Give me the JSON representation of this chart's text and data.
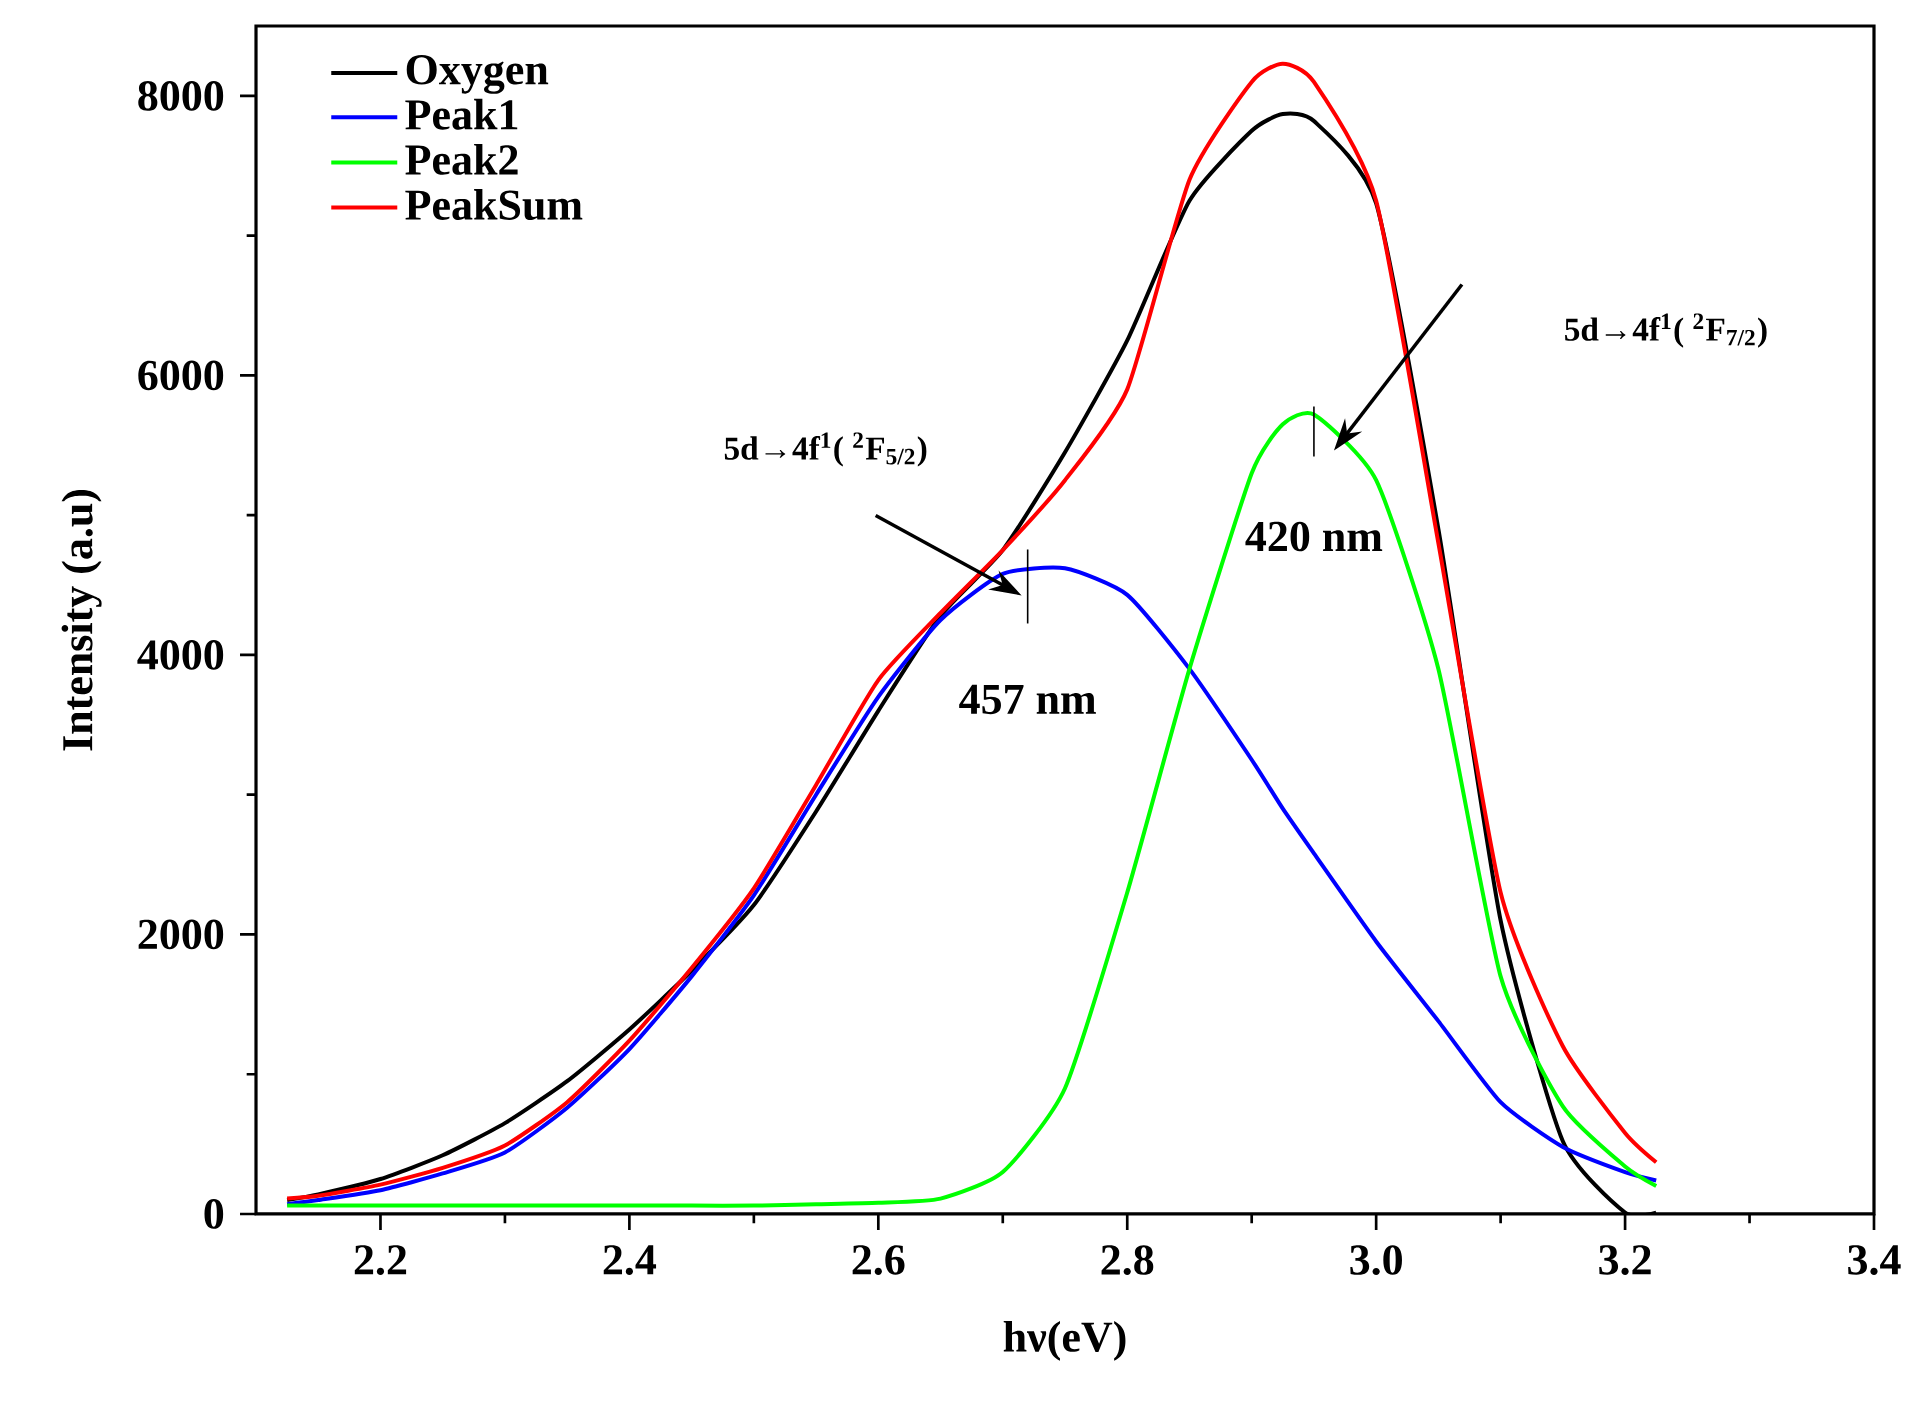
{
  "chart_data": {
    "type": "line",
    "xlabel": "hν(eV)",
    "ylabel": "Intensity (a.u)",
    "x": [
      2.125,
      2.15,
      2.2,
      2.25,
      2.3,
      2.35,
      2.4,
      2.45,
      2.5,
      2.55,
      2.6,
      2.65,
      2.7,
      2.75,
      2.8,
      2.85,
      2.9,
      2.925,
      2.95,
      3.0,
      3.05,
      3.1,
      3.15,
      3.2,
      3.225
    ],
    "series": [
      {
        "name": "Oxygen",
        "color": "#000000",
        "values": [
          100,
          140,
          250,
          420,
          650,
          950,
          1320,
          1740,
          2210,
          2880,
          3600,
          4280,
          4750,
          5450,
          6250,
          7250,
          7750,
          7870,
          7820,
          7230,
          4900,
          2100,
          520,
          10,
          10
        ]
      },
      {
        "name": "Peak1",
        "color": "#0000ff",
        "values": [
          70,
          100,
          170,
          290,
          440,
          760,
          1180,
          1700,
          2280,
          3000,
          3700,
          4250,
          4580,
          4620,
          4430,
          3900,
          3250,
          2900,
          2580,
          1950,
          1380,
          800,
          480,
          300,
          240
        ]
      },
      {
        "name": "Peak2",
        "color": "#00ff00",
        "values": [
          60,
          60,
          60,
          60,
          60,
          60,
          60,
          60,
          60,
          70,
          80,
          110,
          300,
          900,
          2300,
          3900,
          5300,
          5650,
          5720,
          5250,
          3900,
          1700,
          770,
          340,
          200
        ]
      },
      {
        "name": "PeakSum",
        "color": "#ff0000",
        "values": [
          110,
          130,
          210,
          330,
          490,
          800,
          1240,
          1760,
          2330,
          3070,
          3820,
          4300,
          4750,
          5250,
          5900,
          7400,
          8100,
          8230,
          8100,
          7250,
          4800,
          2300,
          1200,
          580,
          370
        ]
      }
    ],
    "xlim": [
      2.1,
      3.4
    ],
    "ylim": [
      0,
      8500
    ],
    "xticks": [
      {
        "value": 2.2,
        "label": "2.2"
      },
      {
        "value": 2.4,
        "label": "2.4"
      },
      {
        "value": 2.6,
        "label": "2.6"
      },
      {
        "value": 2.8,
        "label": "2.8"
      },
      {
        "value": 3.0,
        "label": "3.0"
      },
      {
        "value": 3.2,
        "label": "3.2"
      },
      {
        "value": 3.4,
        "label": "3.4"
      }
    ],
    "yticks": [
      0,
      2000,
      4000,
      6000,
      8000
    ],
    "legend": "top left",
    "grid": false,
    "line_style": "solid",
    "marker": "none",
    "annotations": [
      "5d→4f$^{1}$( $^{2}$F$_{5/2}$)",
      {
        "text": "457 nm",
        "x": 2.72,
        "y": 4640
      },
      "5d→4f$^{1}$( $^{2}$F$_{7/2}$)",
      {
        "text": "420 nm",
        "x": 2.95,
        "y": 5720
      }
    ]
  }
}
